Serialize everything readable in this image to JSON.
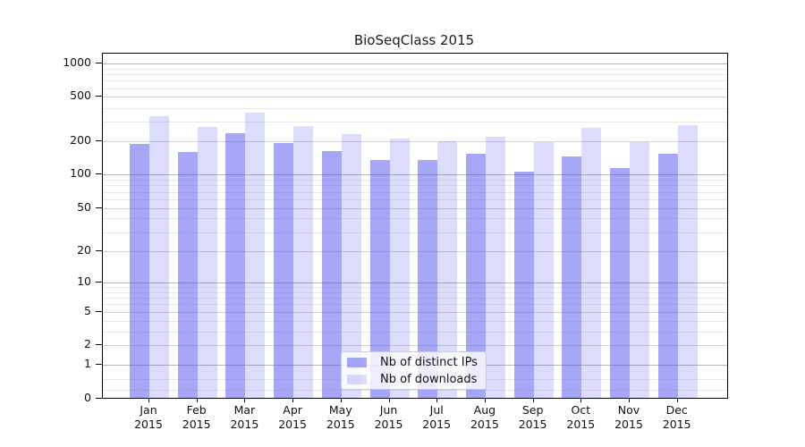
{
  "title": "BioSeqClass 2015",
  "chart_data": {
    "type": "bar",
    "title": "BioSeqClass 2015",
    "x": {
      "months": [
        "Jan",
        "Feb",
        "Mar",
        "Apr",
        "May",
        "Jun",
        "Jul",
        "Aug",
        "Sep",
        "Oct",
        "Nov",
        "Dec"
      ],
      "year": "2015"
    },
    "y_axis": {
      "scale": "log1p",
      "range": [
        0,
        1000
      ],
      "ticks": [
        {
          "value": 1000,
          "label": "1000"
        },
        {
          "value": 500,
          "label": "500"
        },
        {
          "value": 200,
          "label": "200"
        },
        {
          "value": 100,
          "label": "100"
        },
        {
          "value": 50,
          "label": "50"
        },
        {
          "value": 20,
          "label": "20"
        },
        {
          "value": 10,
          "label": "10"
        },
        {
          "value": 5,
          "label": "5"
        },
        {
          "value": 2,
          "label": "2"
        },
        {
          "value": 1,
          "label": "1"
        },
        {
          "value": 0,
          "label": "0"
        }
      ]
    },
    "series": [
      {
        "name": "Nb of distinct IPs",
        "color": "rgba(80,80,240,0.5)",
        "values": [
          190,
          160,
          235,
          192,
          163,
          137,
          135,
          155,
          107,
          146,
          115,
          155
        ]
      },
      {
        "name": "Nb of downloads",
        "color": "rgba(80,80,240,0.2)",
        "values": [
          335,
          270,
          360,
          275,
          232,
          213,
          200,
          220,
          198,
          263,
          196,
          280
        ]
      }
    ],
    "legend": {
      "position": "bottom-center",
      "entries": [
        "Nb of distinct IPs",
        "Nb of downloads"
      ]
    },
    "grid": "on",
    "colors": {
      "bar_distinct_ips": "rgba(80,80,240,0.5)",
      "bar_downloads": "rgba(80,80,240,0.2)",
      "grid_major": "#b6b6b6",
      "grid_mid": "#d4d4d4",
      "grid_minor": "#eaeaea",
      "spine": "#000000",
      "background": "#ffffff"
    }
  }
}
